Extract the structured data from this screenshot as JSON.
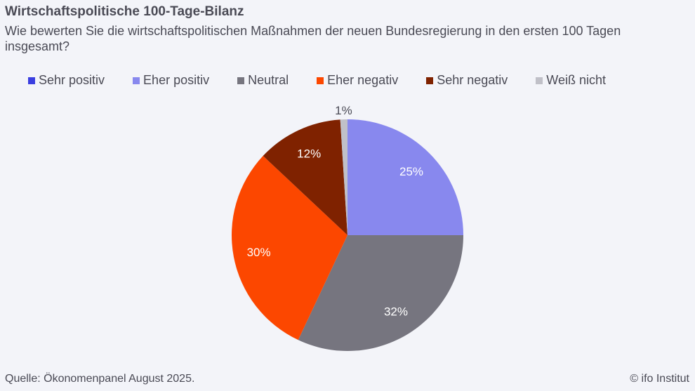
{
  "title": "Wirtschaftspolitische 100-Tage-Bilanz",
  "subtitle": "Wie bewerten Sie die wirtschaftspolitischen Maßnahmen der neuen Bundesregierung in den ersten 100 Tagen insgesamt?",
  "source": "Quelle: Ökonomenpanel August 2025.",
  "copyright": "© ifo Institut",
  "chart_data": {
    "type": "pie",
    "title": "Wirtschaftspolitische 100-Tage-Bilanz",
    "legend_position": "top",
    "start_angle": "12 o'clock, clockwise",
    "slices": [
      {
        "name": "Sehr positiv",
        "value": 0,
        "label": "",
        "color": "#3a3ee0"
      },
      {
        "name": "Eher positiv",
        "value": 25,
        "label": "25%",
        "color": "#8888ee"
      },
      {
        "name": "Neutral",
        "value": 32,
        "label": "32%",
        "color": "#76757f"
      },
      {
        "name": "Eher negativ",
        "value": 30,
        "label": "30%",
        "color": "#fc4700"
      },
      {
        "name": "Sehr negativ",
        "value": 12,
        "label": "12%",
        "color": "#7f2200"
      },
      {
        "name": "Weiß nicht",
        "value": 1,
        "label": "1%",
        "color": "#c0c0c8"
      }
    ]
  }
}
